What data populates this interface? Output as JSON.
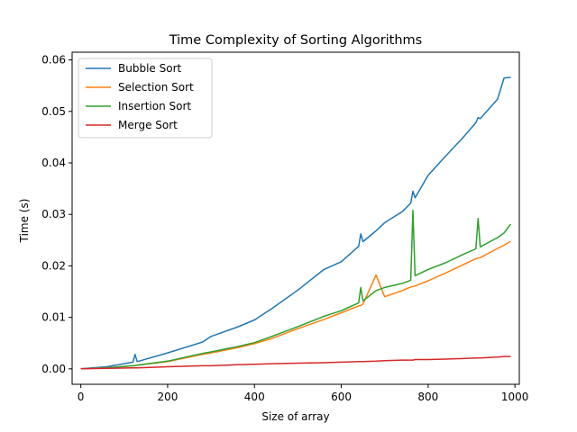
{
  "chart_data": {
    "type": "line",
    "title": "Time Complexity of Sorting Algorithms",
    "xlabel": "Size of array",
    "ylabel": "Time (s)",
    "xlim": [
      -20,
      1010
    ],
    "ylim": [
      -0.003,
      0.0615
    ],
    "xticks": [
      0,
      200,
      400,
      600,
      800,
      1000
    ],
    "yticks": [
      0.0,
      0.01,
      0.02,
      0.03,
      0.04,
      0.05,
      0.06
    ],
    "xtick_labels": [
      "0",
      "200",
      "400",
      "600",
      "800",
      "1000"
    ],
    "ytick_labels": [
      "0.00",
      "0.01",
      "0.02",
      "0.03",
      "0.04",
      "0.05",
      "0.06"
    ],
    "grid": false,
    "legend_position": "upper-left",
    "x": [
      0,
      60,
      120,
      125,
      130,
      200,
      280,
      300,
      360,
      400,
      440,
      500,
      560,
      600,
      640,
      645,
      650,
      680,
      700,
      740,
      760,
      765,
      770,
      800,
      840,
      880,
      910,
      915,
      920,
      960,
      975,
      990
    ],
    "series": [
      {
        "name": "Bubble Sort",
        "color": "#1f77b4",
        "values": [
          0.0,
          0.0004,
          0.0013,
          0.0028,
          0.0014,
          0.0031,
          0.0052,
          0.0063,
          0.0081,
          0.0095,
          0.0117,
          0.0153,
          0.0193,
          0.0208,
          0.0238,
          0.0262,
          0.0247,
          0.0268,
          0.0284,
          0.0305,
          0.0322,
          0.0345,
          0.0332,
          0.0376,
          0.0413,
          0.0449,
          0.0478,
          0.0488,
          0.0486,
          0.0524,
          0.0565,
          0.0566
        ]
      },
      {
        "name": "Selection Sort",
        "color": "#ff7f0e",
        "values": [
          0.0,
          0.0002,
          0.0006,
          0.0006,
          0.0007,
          0.0014,
          0.0028,
          0.0031,
          0.0041,
          0.0049,
          0.0059,
          0.0078,
          0.0096,
          0.0109,
          0.0122,
          0.0123,
          0.0126,
          0.0182,
          0.014,
          0.0152,
          0.0159,
          0.016,
          0.0161,
          0.0171,
          0.0186,
          0.0202,
          0.0214,
          0.0215,
          0.0216,
          0.0234,
          0.024,
          0.0248
        ]
      },
      {
        "name": "Insertion Sort",
        "color": "#2ca02c",
        "values": [
          0.0,
          0.0002,
          0.0006,
          0.0006,
          0.0007,
          0.0015,
          0.003,
          0.0033,
          0.0043,
          0.0051,
          0.0063,
          0.0082,
          0.0102,
          0.0113,
          0.0128,
          0.0158,
          0.0132,
          0.0152,
          0.0158,
          0.0166,
          0.0172,
          0.0308,
          0.0181,
          0.0193,
          0.0206,
          0.0222,
          0.0233,
          0.0292,
          0.0237,
          0.0255,
          0.0264,
          0.0281
        ]
      },
      {
        "name": "Merge Sort",
        "color": "#d62728",
        "values": [
          0.0,
          0.0001,
          0.0002,
          0.0002,
          0.0002,
          0.0004,
          0.0006,
          0.0006,
          0.0008,
          0.0009,
          0.001,
          0.0011,
          0.0012,
          0.0013,
          0.0014,
          0.0014,
          0.0014,
          0.0015,
          0.0016,
          0.0017,
          0.0017,
          0.0017,
          0.0018,
          0.0018,
          0.0019,
          0.002,
          0.0021,
          0.0021,
          0.0021,
          0.0023,
          0.0024,
          0.0024
        ]
      }
    ]
  }
}
